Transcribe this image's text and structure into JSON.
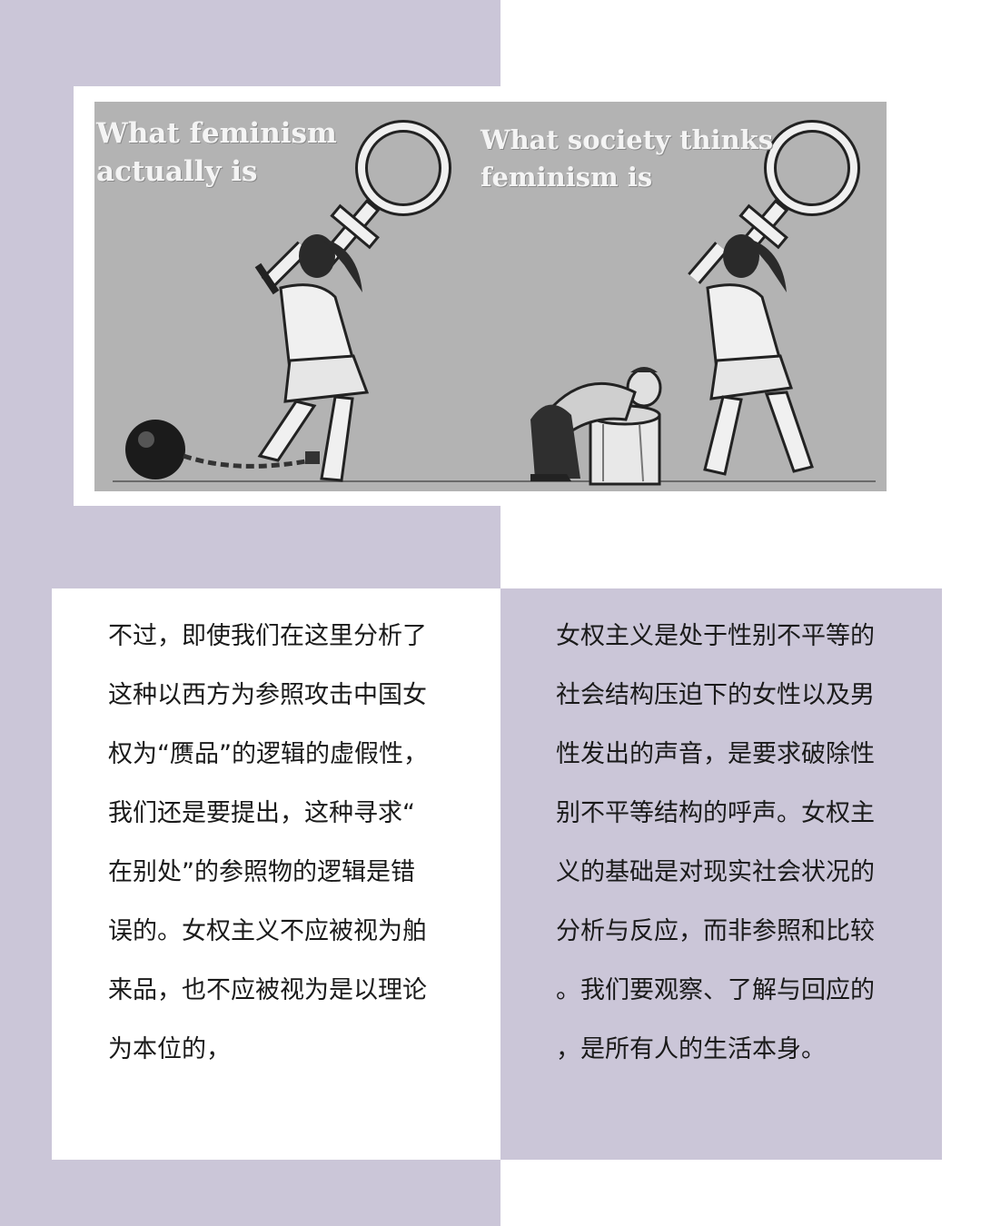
{
  "cartoon": {
    "caption_left": "What feminism\nactually is",
    "caption_right": "What society thinks\nfeminism is"
  },
  "text_left": "不过，即使我们在这里分析了\n这种以西方为参照攻击中国女\n权为“赝品”的逻辑的虚假性，\n我们还是要提出，这种寻求“\n在别处”的参照物的逻辑是错\n误的。女权主义不应被视为舶\n来品，也不应被视为是以理论\n为本位的，",
  "text_right": "女权主义是处于性别不平等的\n社会结构压迫下的女性以及男\n性发出的声音，是要求破除性\n别不平等结构的呼声。女权主\n义的基础是对现实社会状况的\n分析与反应，而非参照和比较\n。我们要观察、了解与回应的\n，是所有人的生活本身。",
  "colors": {
    "lavender": "#cbc6d8",
    "cartoon_bg": "#b3b3b3",
    "text": "#1a1a1a"
  }
}
